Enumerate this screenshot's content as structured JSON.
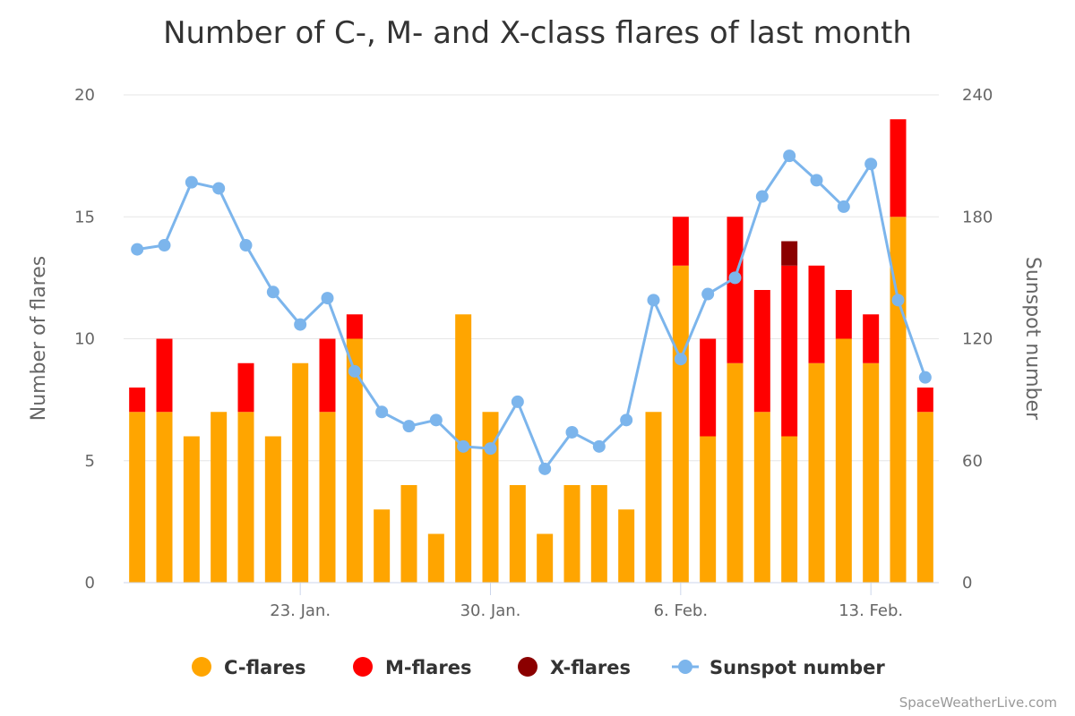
{
  "title": "Number of C-, M- and X-class flares of last month",
  "credits": "SpaceWeatherLive.com",
  "colors": {
    "c_flares": "#FFA500",
    "m_flares": "#FF0000",
    "x_flares": "#8B0000",
    "sunspot": "#7CB5EC"
  },
  "chart_data": {
    "type": "bar",
    "title": "Number of C-, M- and X-class flares of last month",
    "x_labels": [
      "23. Jan.",
      "30. Jan.",
      "6. Feb.",
      "13. Feb."
    ],
    "x_tick_dates": [
      "23 Jan",
      "30 Jan",
      "6 Feb",
      "13 Feb"
    ],
    "dates": [
      "17 Jan",
      "18 Jan",
      "19 Jan",
      "20 Jan",
      "21 Jan",
      "22 Jan",
      "23 Jan",
      "24 Jan",
      "25 Jan",
      "26 Jan",
      "27 Jan",
      "28 Jan",
      "29 Jan",
      "30 Jan",
      "31 Jan",
      "1 Feb",
      "2 Feb",
      "3 Feb",
      "4 Feb",
      "5 Feb",
      "6 Feb",
      "7 Feb",
      "8 Feb",
      "9 Feb",
      "10 Feb",
      "11 Feb",
      "12 Feb",
      "13 Feb",
      "14 Feb",
      "15 Feb"
    ],
    "y_left": {
      "label": "Number of flares",
      "min": 0,
      "max": 20,
      "ticks": [
        "0",
        "5",
        "10",
        "15",
        "20"
      ]
    },
    "y_right": {
      "label": "Sunspot number",
      "min": 0,
      "max": 240,
      "ticks": [
        "0",
        "60",
        "120",
        "180",
        "240"
      ]
    },
    "stacked": true,
    "grid": true,
    "legend_position": "bottom",
    "series": [
      {
        "name": "C-flares",
        "type": "bar",
        "axis": "left",
        "values": [
          7,
          7,
          6,
          7,
          7,
          6,
          9,
          7,
          10,
          3,
          4,
          2,
          11,
          7,
          4,
          2,
          4,
          4,
          3,
          7,
          13,
          6,
          9,
          7,
          6,
          9,
          10,
          9,
          15,
          7
        ]
      },
      {
        "name": "M-flares",
        "type": "bar",
        "axis": "left",
        "values": [
          1,
          3,
          0,
          0,
          2,
          0,
          0,
          3,
          1,
          0,
          0,
          0,
          0,
          0,
          0,
          0,
          0,
          0,
          0,
          0,
          2,
          4,
          6,
          5,
          7,
          4,
          2,
          2,
          4,
          1
        ]
      },
      {
        "name": "X-flares",
        "type": "bar",
        "axis": "left",
        "values": [
          0,
          0,
          0,
          0,
          0,
          0,
          0,
          0,
          0,
          0,
          0,
          0,
          0,
          0,
          0,
          0,
          0,
          0,
          0,
          0,
          0,
          0,
          0,
          0,
          1,
          0,
          0,
          0,
          0,
          0
        ]
      },
      {
        "name": "Sunspot number",
        "type": "line",
        "axis": "right",
        "values": [
          164,
          166,
          197,
          194,
          166,
          143,
          127,
          140,
          104,
          84,
          77,
          80,
          67,
          66,
          89,
          56,
          74,
          67,
          80,
          139,
          110,
          142,
          150,
          190,
          210,
          198,
          185,
          206,
          139,
          101
        ]
      }
    ]
  }
}
